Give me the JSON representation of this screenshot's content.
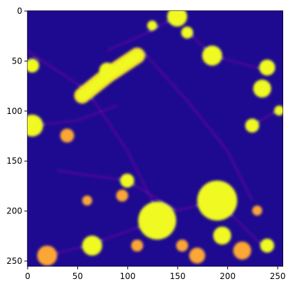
{
  "chart_data": {
    "type": "image",
    "colormap": "plasma",
    "xlim": [
      -0.5,
      255.5
    ],
    "ylim": [
      255.5,
      -0.5
    ],
    "xticks": [
      0,
      50,
      100,
      150,
      200,
      250
    ],
    "yticks": [
      0,
      50,
      100,
      150,
      200,
      250
    ]
  }
}
